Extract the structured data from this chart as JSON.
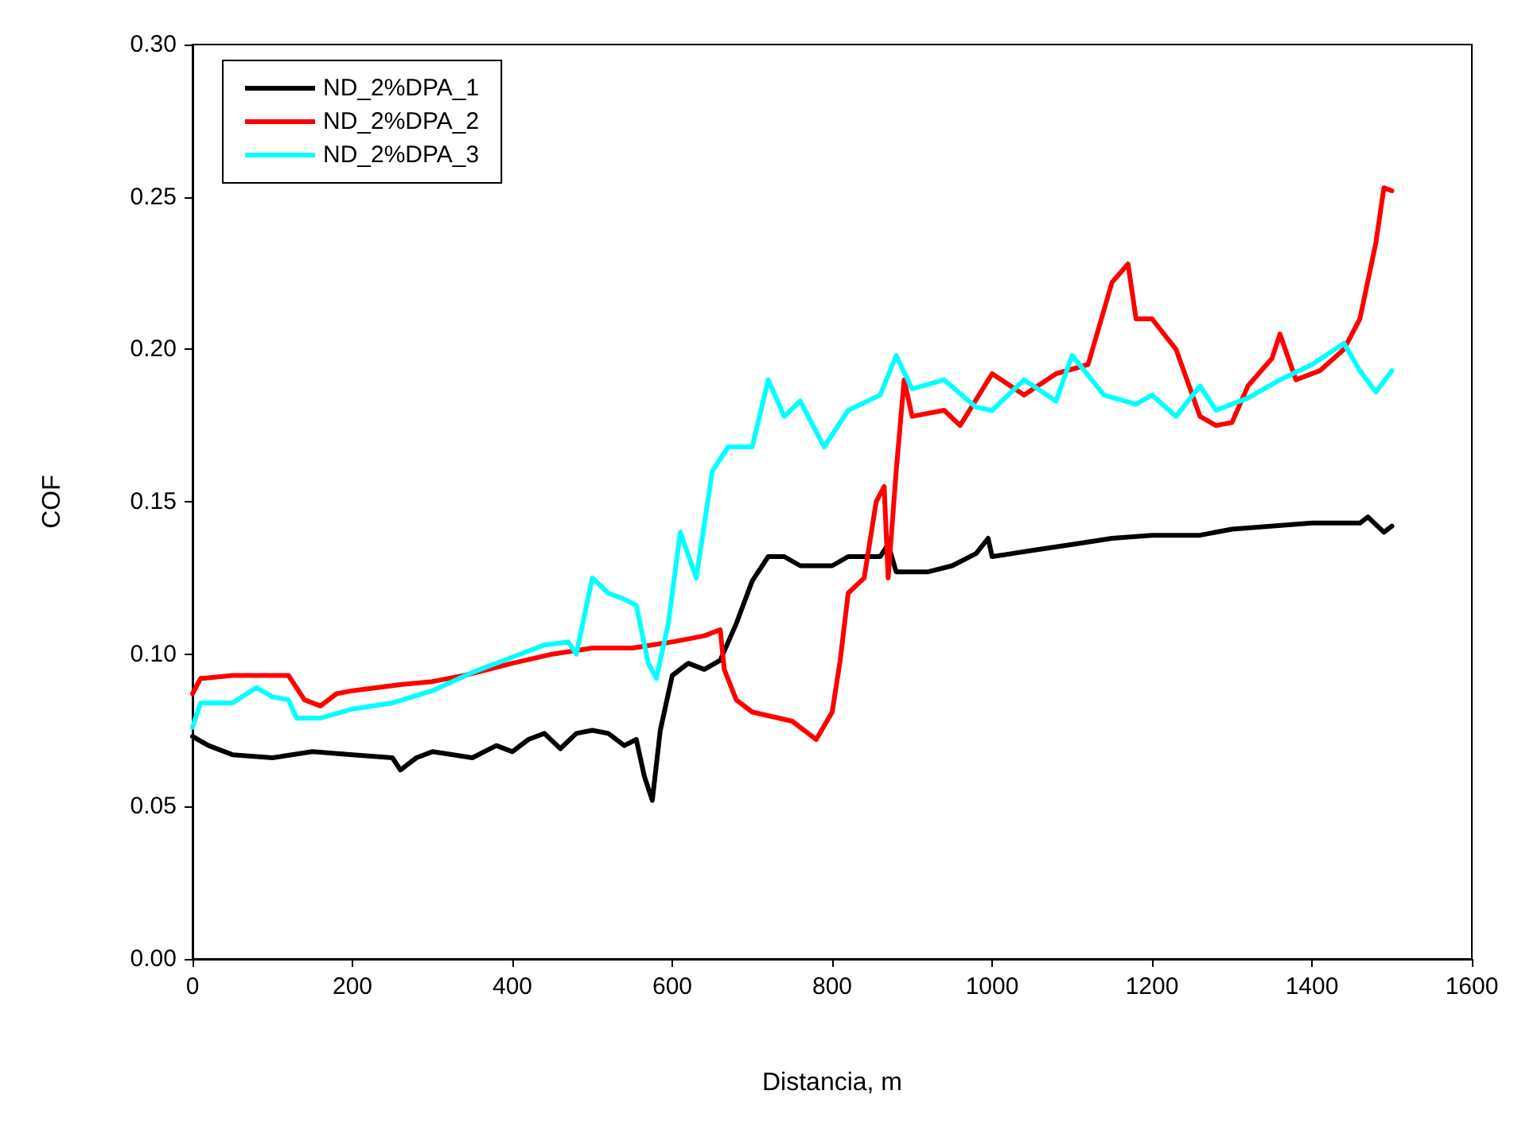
{
  "chart_data": {
    "type": "line",
    "xlabel": "Distancia, m",
    "ylabel": "COF",
    "xlim": [
      0,
      1600
    ],
    "xticks": [
      0,
      200,
      400,
      600,
      800,
      1000,
      1200,
      1400,
      1600
    ],
    "ylim": [
      0,
      0.3
    ],
    "yticks": [
      {
        "value": 0,
        "label": "0.00"
      },
      {
        "value": 0.05,
        "label": "0.05"
      },
      {
        "value": 0.1,
        "label": "0.10"
      },
      {
        "value": 0.15,
        "label": "0.15"
      },
      {
        "value": 0.2,
        "label": "0.20"
      },
      {
        "value": 0.25,
        "label": "0.25"
      },
      {
        "value": 0.3,
        "label": "0.30"
      }
    ],
    "grid": false,
    "legend": "top left",
    "marker": "none",
    "line_style": "solid",
    "series": [
      {
        "name": "ND_2%DPA_1",
        "color": "#000000",
        "x": [
          0,
          20,
          50,
          100,
          150,
          200,
          250,
          260,
          280,
          300,
          350,
          380,
          400,
          420,
          440,
          460,
          480,
          500,
          520,
          540,
          555,
          565,
          575,
          585,
          600,
          620,
          640,
          660,
          680,
          700,
          720,
          740,
          760,
          800,
          820,
          860,
          870,
          880,
          920,
          950,
          980,
          995,
          1000,
          1050,
          1100,
          1150,
          1200,
          1260,
          1300,
          1400,
          1460,
          1470,
          1490,
          1500
        ],
        "values": [
          0.073,
          0.07,
          0.067,
          0.066,
          0.068,
          0.067,
          0.066,
          0.062,
          0.066,
          0.068,
          0.066,
          0.07,
          0.068,
          0.072,
          0.074,
          0.069,
          0.074,
          0.075,
          0.074,
          0.07,
          0.072,
          0.06,
          0.052,
          0.075,
          0.093,
          0.097,
          0.095,
          0.098,
          0.11,
          0.124,
          0.132,
          0.132,
          0.129,
          0.129,
          0.132,
          0.132,
          0.136,
          0.127,
          0.127,
          0.129,
          0.133,
          0.138,
          0.132,
          0.134,
          0.136,
          0.138,
          0.139,
          0.139,
          0.141,
          0.143,
          0.143,
          0.145,
          0.14,
          0.142
        ]
      },
      {
        "name": "ND_2%DPA_2",
        "color": "#ff0000",
        "x": [
          0,
          10,
          50,
          120,
          140,
          160,
          180,
          200,
          260,
          300,
          340,
          400,
          450,
          500,
          550,
          600,
          640,
          660,
          665,
          680,
          700,
          750,
          780,
          800,
          810,
          820,
          840,
          855,
          865,
          870,
          880,
          890,
          900,
          940,
          960,
          1000,
          1040,
          1080,
          1120,
          1150,
          1170,
          1180,
          1200,
          1230,
          1260,
          1280,
          1300,
          1320,
          1350,
          1360,
          1380,
          1410,
          1440,
          1460,
          1480,
          1490,
          1500
        ],
        "values": [
          0.087,
          0.092,
          0.093,
          0.093,
          0.085,
          0.083,
          0.087,
          0.088,
          0.09,
          0.091,
          0.093,
          0.097,
          0.1,
          0.102,
          0.102,
          0.104,
          0.106,
          0.108,
          0.095,
          0.085,
          0.081,
          0.078,
          0.072,
          0.081,
          0.098,
          0.12,
          0.125,
          0.15,
          0.155,
          0.125,
          0.16,
          0.19,
          0.178,
          0.18,
          0.175,
          0.192,
          0.185,
          0.192,
          0.195,
          0.222,
          0.228,
          0.21,
          0.21,
          0.2,
          0.178,
          0.175,
          0.176,
          0.188,
          0.197,
          0.205,
          0.19,
          0.193,
          0.2,
          0.21,
          0.235,
          0.253,
          0.252
        ]
      },
      {
        "name": "ND_2%DPA_3",
        "color": "#00ffff",
        "x": [
          0,
          10,
          50,
          80,
          100,
          120,
          130,
          160,
          200,
          250,
          300,
          350,
          400,
          440,
          470,
          480,
          500,
          520,
          540,
          555,
          570,
          580,
          595,
          610,
          630,
          650,
          670,
          700,
          720,
          740,
          760,
          790,
          820,
          860,
          880,
          900,
          940,
          980,
          1000,
          1040,
          1080,
          1100,
          1140,
          1180,
          1200,
          1230,
          1260,
          1280,
          1320,
          1360,
          1400,
          1440,
          1460,
          1480,
          1500
        ],
        "values": [
          0.076,
          0.084,
          0.084,
          0.089,
          0.086,
          0.085,
          0.079,
          0.079,
          0.082,
          0.084,
          0.088,
          0.094,
          0.099,
          0.103,
          0.104,
          0.1,
          0.125,
          0.12,
          0.118,
          0.116,
          0.097,
          0.092,
          0.11,
          0.14,
          0.125,
          0.16,
          0.168,
          0.168,
          0.19,
          0.178,
          0.183,
          0.168,
          0.18,
          0.185,
          0.198,
          0.187,
          0.19,
          0.181,
          0.18,
          0.19,
          0.183,
          0.198,
          0.185,
          0.182,
          0.185,
          0.178,
          0.188,
          0.18,
          0.184,
          0.19,
          0.195,
          0.202,
          0.193,
          0.186,
          0.193
        ]
      }
    ]
  }
}
